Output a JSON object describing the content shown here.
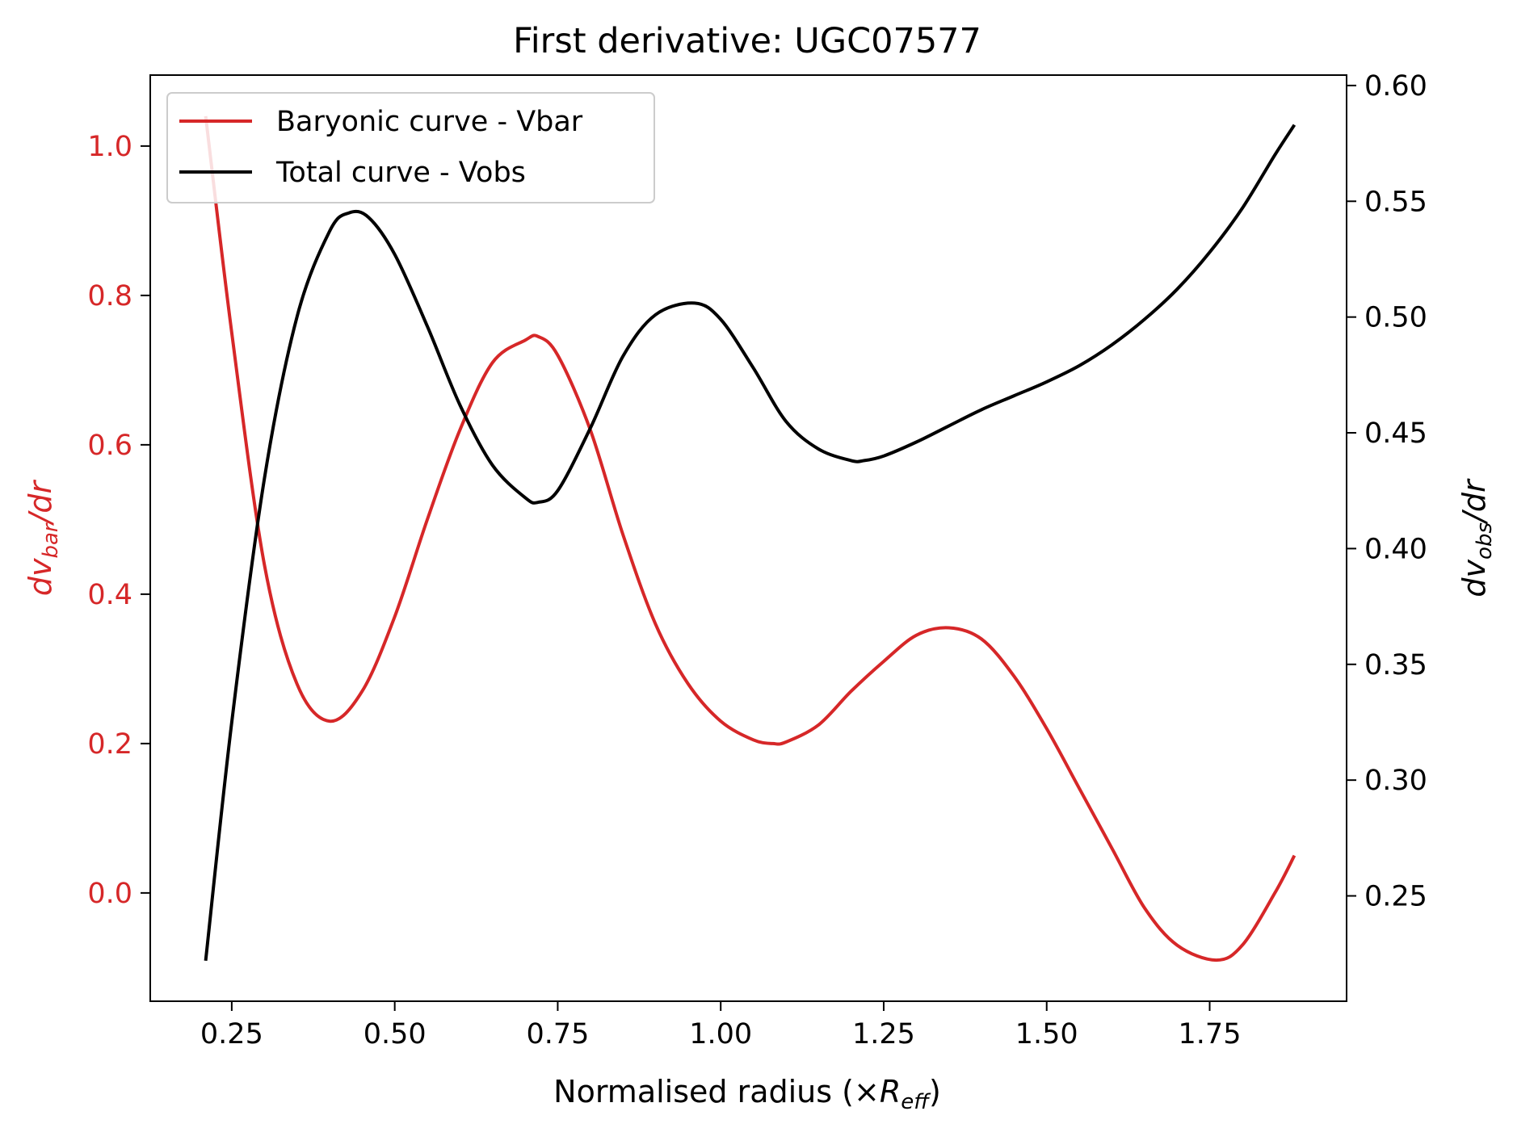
{
  "chart_data": {
    "type": "line",
    "title": "First derivative: UGC07577",
    "xlabel": {
      "main": "Normalised radius (×",
      "italic": "R",
      "sub": "eff",
      "close": ")"
    },
    "ylabel_left": {
      "d": "dv",
      "sub": "bar",
      "rest": "/dr"
    },
    "ylabel_right": {
      "d": "dv",
      "sub": "obs",
      "rest": "/dr"
    },
    "xlim": [
      0.125,
      1.96
    ],
    "ylim_left": [
      -0.145,
      1.095
    ],
    "ylim_right": [
      0.2045,
      0.6045
    ],
    "x_ticks": [
      0.25,
      0.5,
      0.75,
      1.0,
      1.25,
      1.5,
      1.75
    ],
    "x_tick_labels": [
      "0.25",
      "0.50",
      "0.75",
      "1.00",
      "1.25",
      "1.50",
      "1.75"
    ],
    "y_left_ticks": [
      0.0,
      0.2,
      0.4,
      0.6,
      0.8,
      1.0
    ],
    "y_left_tick_labels": [
      "0.0",
      "0.2",
      "0.4",
      "0.6",
      "0.8",
      "1.0"
    ],
    "y_right_ticks": [
      0.25,
      0.3,
      0.35,
      0.4,
      0.45,
      0.5,
      0.55,
      0.6
    ],
    "y_right_tick_labels": [
      "0.25",
      "0.30",
      "0.35",
      "0.40",
      "0.45",
      "0.50",
      "0.55",
      "0.60"
    ],
    "legend": {
      "placement": "upper-left"
    },
    "colors": {
      "left_axis": "#d62728"
    },
    "series": [
      {
        "name": "Baryonic curve - Vbar",
        "axis": "left",
        "color": "#d62728",
        "x": [
          0.21,
          0.25,
          0.3,
          0.35,
          0.4,
          0.45,
          0.5,
          0.55,
          0.6,
          0.65,
          0.7,
          0.72,
          0.75,
          0.8,
          0.85,
          0.9,
          0.95,
          1.0,
          1.05,
          1.08,
          1.1,
          1.15,
          1.2,
          1.25,
          1.3,
          1.35,
          1.4,
          1.45,
          1.5,
          1.55,
          1.6,
          1.65,
          1.7,
          1.76,
          1.8,
          1.85,
          1.88
        ],
        "y": [
          1.04,
          0.75,
          0.44,
          0.28,
          0.23,
          0.27,
          0.37,
          0.5,
          0.62,
          0.71,
          0.74,
          0.745,
          0.72,
          0.62,
          0.48,
          0.36,
          0.28,
          0.23,
          0.205,
          0.2,
          0.202,
          0.225,
          0.27,
          0.31,
          0.345,
          0.355,
          0.34,
          0.29,
          0.22,
          0.14,
          0.06,
          -0.02,
          -0.07,
          -0.09,
          -0.07,
          0.0,
          0.05
        ]
      },
      {
        "name": "Total curve - Vobs",
        "axis": "right",
        "color": "#000000",
        "x": [
          0.21,
          0.25,
          0.3,
          0.35,
          0.4,
          0.43,
          0.46,
          0.5,
          0.55,
          0.6,
          0.65,
          0.7,
          0.72,
          0.75,
          0.8,
          0.85,
          0.9,
          0.96,
          1.0,
          1.05,
          1.1,
          1.15,
          1.2,
          1.22,
          1.25,
          1.3,
          1.35,
          1.4,
          1.45,
          1.5,
          1.55,
          1.6,
          1.65,
          1.7,
          1.75,
          1.8,
          1.85,
          1.88
        ],
        "y": [
          0.222,
          0.325,
          0.43,
          0.5,
          0.537,
          0.545,
          0.543,
          0.527,
          0.496,
          0.462,
          0.436,
          0.422,
          0.42,
          0.425,
          0.452,
          0.483,
          0.501,
          0.506,
          0.499,
          0.478,
          0.455,
          0.443,
          0.438,
          0.438,
          0.44,
          0.446,
          0.453,
          0.46,
          0.466,
          0.472,
          0.479,
          0.488,
          0.499,
          0.512,
          0.528,
          0.547,
          0.57,
          0.583
        ]
      }
    ]
  }
}
